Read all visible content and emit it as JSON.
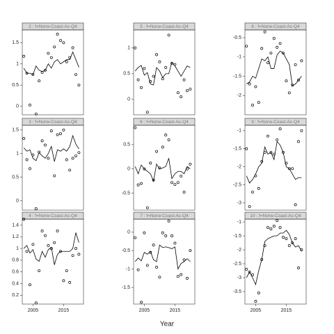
{
  "xlabel": "Year",
  "chart_data": [
    {
      "type": "line",
      "title": "2 : f=Norw-Coast-Ac-Q4",
      "x": [
        2002,
        2003,
        2004,
        2005,
        2006,
        2007,
        2008,
        2009,
        2010,
        2011,
        2012,
        2013,
        2014,
        2015,
        2016,
        2017,
        2018,
        2019,
        2020
      ],
      "xlim": [
        2001.5,
        2021.5
      ],
      "ylim": [
        -0.2,
        1.8
      ],
      "yticks": [
        0,
        0.5,
        1,
        1.5
      ],
      "series": [
        {
          "mode": "markers",
          "color": "#000000",
          "values": [
            1.18,
            0.78,
            0.03,
            0.75,
            -0.18,
            0.6,
            0.8,
            0.85,
            1.25,
            1.15,
            1.4,
            1.7,
            1.55,
            1.5,
            1.05,
            1.15,
            1.38,
            0.75,
            0.5
          ]
        },
        {
          "mode": "lines",
          "color": "#000000",
          "values": [
            0.9,
            0.78,
            0.78,
            0.75,
            0.95,
            0.85,
            0.82,
            0.85,
            1.0,
            0.9,
            1.05,
            1.1,
            1.0,
            1.05,
            1.1,
            1.1,
            1.28,
            1.1,
            0.92
          ]
        }
      ]
    },
    {
      "type": "line",
      "title": "5 : f=Norw-Coast-Ac-Q4",
      "x": [
        2002,
        2003,
        2004,
        2005,
        2006,
        2007,
        2008,
        2009,
        2010,
        2011,
        2012,
        2013,
        2014,
        2015,
        2016,
        2017,
        2018,
        2019,
        2020
      ],
      "xlim": [
        2001.5,
        2021.5
      ],
      "ylim": [
        -0.3,
        1.35
      ],
      "yticks": [
        0,
        0.5,
        1
      ],
      "series": [
        {
          "mode": "markers",
          "color": "#000000",
          "values": [
            1.0,
            0.38,
            0.23,
            0.6,
            -0.25,
            0.35,
            0.45,
            0.87,
            0.73,
            0.4,
            0.62,
            1.25,
            0.7,
            0.68,
            0.13,
            0.05,
            0.38,
            0.17,
            0.2
          ]
        },
        {
          "mode": "lines",
          "color": "#000000",
          "values": [
            0.55,
            0.62,
            0.66,
            0.47,
            0.52,
            0.3,
            0.28,
            0.62,
            0.55,
            0.42,
            0.5,
            0.5,
            0.72,
            0.65,
            0.55,
            0.45,
            0.55,
            0.65,
            0.62
          ]
        }
      ]
    },
    {
      "type": "line",
      "title": "8 : f=Norw-Coast-Ac-Q4",
      "x": [
        2002,
        2003,
        2004,
        2005,
        2006,
        2007,
        2008,
        2009,
        2010,
        2011,
        2012,
        2013,
        2014,
        2015,
        2016,
        2017,
        2018,
        2019,
        2020
      ],
      "xlim": [
        2001.5,
        2021.5
      ],
      "ylim": [
        -2.5,
        -0.3
      ],
      "yticks": [
        -0.5,
        -1,
        -1.5,
        -2
      ],
      "series": [
        {
          "mode": "markers",
          "color": "#000000",
          "values": [
            -0.72,
            -1.7,
            -2.25,
            -1.77,
            -2.18,
            -0.78,
            -0.35,
            -1.15,
            -0.9,
            -0.52,
            -0.75,
            -0.65,
            -0.9,
            -1.62,
            -1.93,
            -1.73,
            -1.2,
            -1.6,
            -1.1
          ]
        },
        {
          "mode": "lines",
          "color": "#000000",
          "values": [
            -1.7,
            -1.65,
            -1.5,
            -1.55,
            -1.3,
            -1.05,
            -1.1,
            -1.0,
            -1.3,
            -1.3,
            -0.95,
            -0.85,
            -0.9,
            -1.05,
            -1.2,
            -1.75,
            -1.7,
            -1.6,
            -1.5
          ]
        }
      ]
    },
    {
      "type": "line",
      "title": "3 : f=Norw-Coast-Ac-Q4",
      "x": [
        2002,
        2003,
        2004,
        2005,
        2006,
        2007,
        2008,
        2009,
        2010,
        2011,
        2012,
        2013,
        2014,
        2015,
        2016,
        2017,
        2018,
        2019,
        2020
      ],
      "xlim": [
        2001.5,
        2021.5
      ],
      "ylim": [
        -0.2,
        1.6
      ],
      "yticks": [
        0,
        0.5,
        1,
        1.5
      ],
      "series": [
        {
          "mode": "markers",
          "color": "#000000",
          "values": [
            1.32,
            0.87,
            0.68,
            0.97,
            -0.17,
            1.03,
            1.27,
            1.18,
            0.9,
            1.48,
            0.53,
            1.4,
            1.42,
            1.5,
            0.87,
            0.65,
            0.9,
            0.95,
            1.02
          ]
        },
        {
          "mode": "lines",
          "color": "#000000",
          "values": [
            1.12,
            1.05,
            1.08,
            0.9,
            0.85,
            1.02,
            0.95,
            0.9,
            1.0,
            1.15,
            0.83,
            1.08,
            1.05,
            1.1,
            1.05,
            1.15,
            1.38,
            1.2,
            1.1
          ]
        }
      ]
    },
    {
      "type": "line",
      "title": "6 : f=Norw-Coast-Ac-Q4",
      "x": [
        2002,
        2003,
        2004,
        2005,
        2006,
        2007,
        2008,
        2009,
        2010,
        2011,
        2012,
        2013,
        2014,
        2015,
        2016,
        2017,
        2018,
        2019,
        2020
      ],
      "xlim": [
        2001.5,
        2021.5
      ],
      "ylim": [
        -0.85,
        0.9
      ],
      "yticks": [
        -0.5,
        0,
        0.5
      ],
      "series": [
        {
          "mode": "markers",
          "color": "#000000",
          "values": [
            0.85,
            -0.33,
            -0.3,
            0.0,
            -0.8,
            0.12,
            -0.23,
            0.36,
            0.02,
            0.45,
            0.7,
            0.6,
            -0.28,
            -0.32,
            -0.28,
            -0.15,
            -0.48,
            0.0,
            0.1
          ]
        },
        {
          "mode": "lines",
          "color": "#000000",
          "values": [
            0.05,
            -0.1,
            0.08,
            0.0,
            -0.05,
            -0.1,
            -0.25,
            0.1,
            0.0,
            0.02,
            0.05,
            0.22,
            -0.2,
            -0.1,
            -0.05,
            -0.05,
            -0.1,
            0.05,
            0.0
          ]
        }
      ]
    },
    {
      "type": "line",
      "title": "9 : f=Norw-Coast-Ac-Q4",
      "x": [
        2002,
        2003,
        2004,
        2005,
        2006,
        2007,
        2008,
        2009,
        2010,
        2011,
        2012,
        2013,
        2014,
        2015,
        2016,
        2017,
        2018,
        2019,
        2020
      ],
      "xlim": [
        2001.5,
        2021.5
      ],
      "ylim": [
        -3.2,
        -0.85
      ],
      "yticks": [
        -1,
        -1.5,
        -2,
        -2.5,
        -3
      ],
      "series": [
        {
          "mode": "markers",
          "color": "#000000",
          "values": [
            -1.5,
            -3.1,
            -2.7,
            -2.25,
            -2.6,
            -1.85,
            -1.6,
            -1.15,
            -1.6,
            -1.65,
            -1.25,
            -0.95,
            -1.6,
            -1.9,
            -2.05,
            -2.05,
            -3.05,
            -1.3,
            -1.0
          ]
        },
        {
          "mode": "lines",
          "color": "#000000",
          "values": [
            -2.25,
            -2.45,
            -2.35,
            -2.2,
            -2.0,
            -1.9,
            -1.45,
            -1.65,
            -1.6,
            -1.8,
            -1.3,
            -1.4,
            -1.6,
            -2.0,
            -2.05,
            -2.2,
            -2.35,
            -2.3,
            -2.3
          ]
        }
      ]
    },
    {
      "type": "line",
      "title": "4 : f=Norw-Coast-Ac-Q4",
      "x": [
        2002,
        2003,
        2004,
        2005,
        2006,
        2007,
        2008,
        2009,
        2010,
        2011,
        2012,
        2013,
        2014,
        2015,
        2016,
        2017,
        2018,
        2019,
        2020
      ],
      "xlim": [
        2001.5,
        2021.5
      ],
      "xticks": [
        2005,
        2015
      ],
      "ylim": [
        0.05,
        1.5
      ],
      "yticks": [
        0.2,
        0.4,
        0.6,
        0.8,
        1,
        1.2,
        1.4
      ],
      "series": [
        {
          "mode": "markers",
          "color": "#000000",
          "values": [
            1.5,
            0.95,
            0.38,
            1.07,
            0.07,
            0.62,
            1.3,
            1.22,
            1.05,
            1.0,
            1.1,
            1.3,
            0.95,
            0.45,
            0.62,
            0.42,
            0.88,
            1.0,
            0.9
          ]
        },
        {
          "mode": "lines",
          "color": "#000000",
          "values": [
            1.0,
            1.05,
            0.92,
            0.98,
            0.82,
            0.78,
            0.95,
            0.85,
            0.98,
            1.02,
            0.72,
            0.9,
            0.95,
            0.95,
            0.95,
            0.95,
            1.0,
            1.27,
            1.1
          ]
        }
      ]
    },
    {
      "type": "line",
      "title": "7 : f=Norw-Coast-Ac-Q4",
      "x": [
        2002,
        2003,
        2004,
        2005,
        2006,
        2007,
        2008,
        2009,
        2010,
        2011,
        2012,
        2013,
        2014,
        2015,
        2016,
        2017,
        2018,
        2019,
        2020
      ],
      "xlim": [
        2001.5,
        2021.5
      ],
      "xticks": [
        2005,
        2015
      ],
      "ylim": [
        -1.95,
        0.35
      ],
      "yticks": [
        -1.5,
        -1,
        -0.5,
        0
      ],
      "series": [
        {
          "mode": "markers",
          "color": "#000000",
          "values": [
            -0.15,
            -1.02,
            -1.9,
            -0.02,
            -0.9,
            -0.55,
            -0.35,
            -0.95,
            -1.22,
            -0.02,
            -0.1,
            0.3,
            -0.1,
            -0.3,
            -1.2,
            -1.15,
            -0.75,
            -1.25,
            -0.5
          ]
        },
        {
          "mode": "lines",
          "color": "#000000",
          "values": [
            -0.8,
            -0.7,
            -0.78,
            -0.55,
            -0.6,
            -0.52,
            -0.75,
            -0.8,
            -0.35,
            -0.42,
            -0.4,
            -0.42,
            -0.45,
            -0.4,
            -1.0,
            -0.85,
            -0.8,
            -0.72,
            -0.8
          ]
        }
      ]
    },
    {
      "type": "line",
      "title": "10 : f=Norw-Coast-Ac-Q4",
      "x": [
        2002,
        2003,
        2004,
        2005,
        2006,
        2007,
        2008,
        2009,
        2010,
        2011,
        2012,
        2013,
        2014,
        2015,
        2016,
        2017,
        2018,
        2019,
        2020
      ],
      "xlim": [
        2001.5,
        2021.5
      ],
      "xticks": [
        2005,
        2015
      ],
      "ylim": [
        -3.95,
        -0.9
      ],
      "yticks": [
        -1,
        -1.5,
        -2,
        -2.5,
        -3,
        -3.5
      ],
      "series": [
        {
          "mode": "markers",
          "color": "#000000",
          "values": [
            -2.7,
            -2.8,
            -2.9,
            -3.85,
            -3.55,
            -2.35,
            -1.85,
            -1.2,
            -1.25,
            -1.15,
            -0.95,
            -1.2,
            -1.55,
            -1.6,
            -1.85,
            -1.75,
            -1.6,
            -2.65,
            -2.0
          ]
        },
        {
          "mode": "lines",
          "color": "#000000",
          "values": [
            -3.0,
            -2.8,
            -3.0,
            -3.25,
            -2.75,
            -2.35,
            -1.7,
            -1.6,
            -1.55,
            -1.5,
            -1.5,
            -1.4,
            -1.4,
            -1.3,
            -1.45,
            -1.75,
            -1.9,
            -1.85,
            -2.05
          ]
        }
      ]
    }
  ]
}
